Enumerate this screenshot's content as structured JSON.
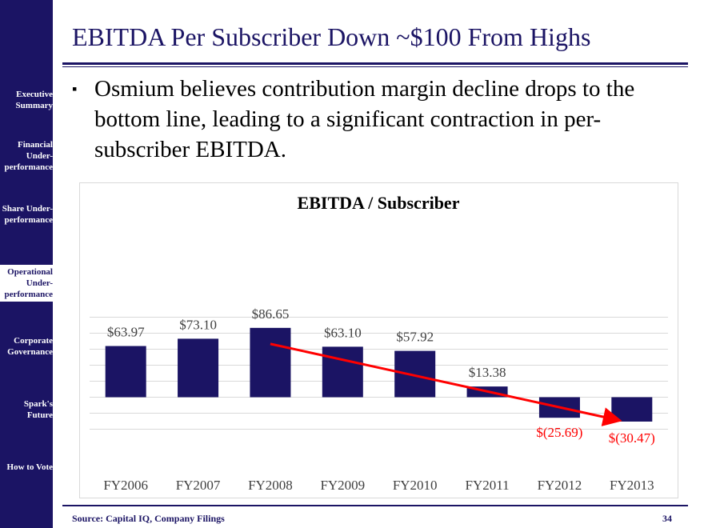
{
  "sidebar": {
    "items": [
      {
        "label": "Executive Summary",
        "active": false
      },
      {
        "label": "Financial Under-performance",
        "active": false
      },
      {
        "label": "Share Under-performance",
        "active": false
      },
      {
        "label": "Operational Under-performance",
        "active": true
      },
      {
        "label": "Corporate Governance",
        "active": false
      },
      {
        "label": "Spark's Future",
        "active": false
      },
      {
        "label": "How to Vote",
        "active": false
      }
    ]
  },
  "slide": {
    "title": "EBITDA Per Subscriber Down ~$100 From Highs",
    "bullet": "Osmium believes contribution margin decline drops to the bottom line, leading to a significant contraction in per-subscriber EBITDA.",
    "bullet_marker": "▪"
  },
  "footer": {
    "source": "Source: Capital IQ, Company Filings",
    "page": "34"
  },
  "colors": {
    "brand": "#1b1464",
    "bar": "#1b1464",
    "negative_label": "#ff0000",
    "trend_arrow": "#ff0000",
    "gridline": "#d9d9d9"
  },
  "chart_data": {
    "type": "bar",
    "title": "EBITDA / Subscriber",
    "categories": [
      "FY2006",
      "FY2007",
      "FY2008",
      "FY2009",
      "FY2010",
      "FY2011",
      "FY2012",
      "FY2013"
    ],
    "values": [
      63.97,
      73.1,
      86.65,
      63.1,
      57.92,
      13.38,
      -25.69,
      -30.47
    ],
    "labels": [
      "$63.97",
      "$73.10",
      "$86.65",
      "$63.10",
      "$57.92",
      "$13.38",
      "$(25.69)",
      "$(30.47)"
    ],
    "xlabel": "",
    "ylabel": "",
    "ylim": [
      -40,
      100
    ],
    "grid": true,
    "trend_arrow": {
      "from_category": "FY2008",
      "to_category": "FY2013",
      "from_value": 86.65,
      "to_value": -30.47
    }
  }
}
